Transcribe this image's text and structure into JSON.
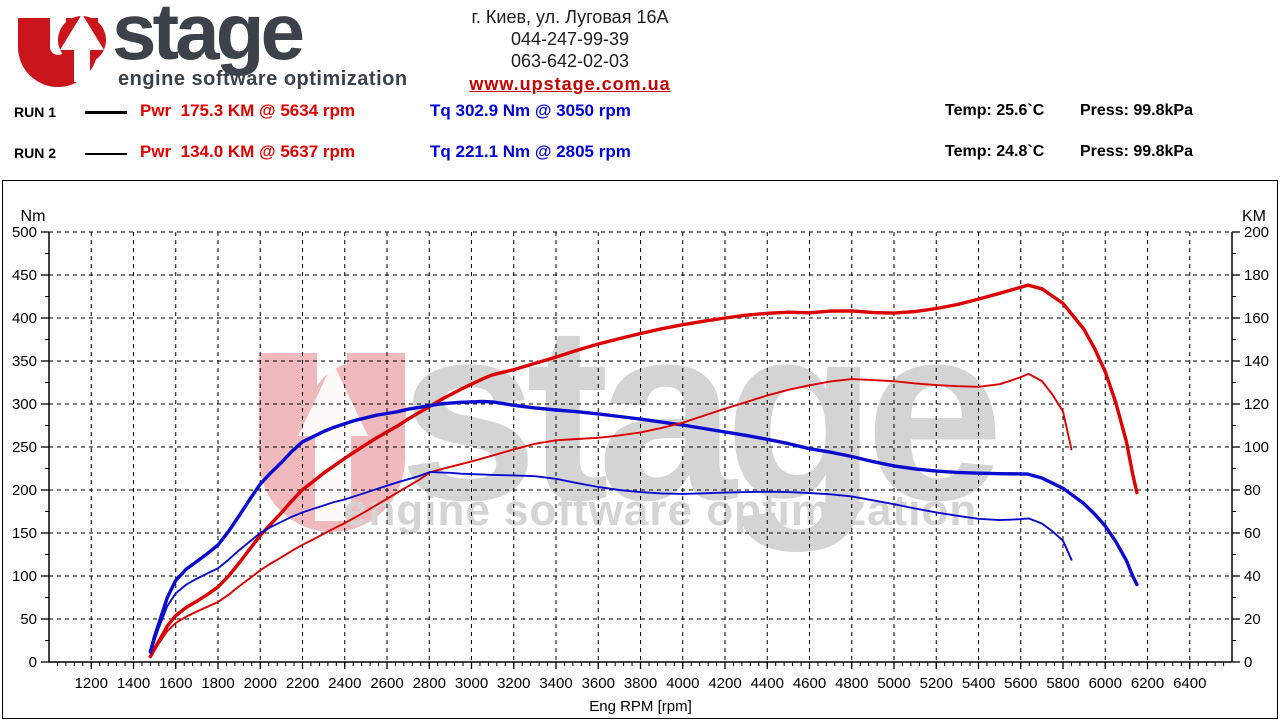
{
  "header": {
    "logo": {
      "stage": "stage",
      "tagline": "engine software optimization"
    },
    "contact": {
      "address": "г. Киев, ул. Луговая 16А",
      "phone1": "044-247-99-39",
      "phone2": "063-642-02-03",
      "website": "www.upstage.com.ua"
    }
  },
  "runs": [
    {
      "label": "RUN 1",
      "pwr": "Pwr  175.3 KM @ 5634 rpm",
      "tq": "Tq 302.9 Nm @ 3050 rpm",
      "temp": "Temp: 25.6`C",
      "press": "Press: 99.8kPa"
    },
    {
      "label": "RUN 2",
      "pwr": "Pwr  134.0 KM @ 5637 rpm",
      "tq": "Tq 221.1 Nm @ 2805 rpm",
      "temp": "Temp: 24.8`C",
      "press": "Press: 99.8kPa"
    }
  ],
  "colors": {
    "power_curve": "#dc0000",
    "torque_curve": "#0b0bd0",
    "grid": "#000000",
    "watermark_red": "#efb9bd",
    "watermark_gray": "#d4d4d4",
    "logo_red": "#c9151b",
    "logo_dark": "#3b4249"
  },
  "watermark": {
    "stage": "stage",
    "tagline": "engine software optimization"
  },
  "chart_data": {
    "type": "line",
    "xlabel": "Eng RPM [rpm]",
    "x_axis": {
      "min": 1000,
      "max": 6600,
      "tick_step": 200,
      "minor_step": 40,
      "first_label": 1200,
      "last_label": 6400
    },
    "left_axis": {
      "label": "Nm",
      "min": 0,
      "max": 500,
      "tick_step": 50,
      "minor_step": 25
    },
    "right_axis": {
      "label": "KM",
      "min": 0,
      "max": 200,
      "tick_step": 20,
      "minor_step": 10
    },
    "grid": "dashed",
    "series": [
      {
        "name": "RUN 1 Power",
        "unit": "KM",
        "axis": "right",
        "color_key": "power_curve",
        "thick": true,
        "peak": "175.3 KM @ 5634 rpm",
        "points": [
          [
            1480,
            2.5
          ],
          [
            1500,
            6.4
          ],
          [
            1520,
            9.7
          ],
          [
            1560,
            16.7
          ],
          [
            1600,
            21.6
          ],
          [
            1650,
            25.4
          ],
          [
            1700,
            28.3
          ],
          [
            1750,
            31.4
          ],
          [
            1800,
            34.9
          ],
          [
            1850,
            40.0
          ],
          [
            1900,
            46.0
          ],
          [
            1950,
            52.5
          ],
          [
            2000,
            58.9
          ],
          [
            2050,
            64.2
          ],
          [
            2100,
            69.4
          ],
          [
            2150,
            75.0
          ],
          [
            2200,
            80.2
          ],
          [
            2250,
            83.9
          ],
          [
            2300,
            87.8
          ],
          [
            2350,
            91.3
          ],
          [
            2400,
            94.7
          ],
          [
            2450,
            98.0
          ],
          [
            2500,
            101.1
          ],
          [
            2550,
            104.2
          ],
          [
            2600,
            107.0
          ],
          [
            2650,
            109.8
          ],
          [
            2700,
            113.0
          ],
          [
            2750,
            115.9
          ],
          [
            2800,
            118.8
          ],
          [
            2850,
            121.7
          ],
          [
            2900,
            124.3
          ],
          [
            2950,
            126.9
          ],
          [
            3000,
            129.2
          ],
          [
            3050,
            131.6
          ],
          [
            3100,
            133.6
          ],
          [
            3150,
            134.8
          ],
          [
            3200,
            136.0
          ],
          [
            3300,
            138.9
          ],
          [
            3400,
            141.8
          ],
          [
            3500,
            145.0
          ],
          [
            3600,
            147.9
          ],
          [
            3700,
            150.4
          ],
          [
            3800,
            152.8
          ],
          [
            3900,
            155.0
          ],
          [
            4000,
            156.9
          ],
          [
            4100,
            158.5
          ],
          [
            4200,
            160.0
          ],
          [
            4300,
            161.3
          ],
          [
            4400,
            162.2
          ],
          [
            4500,
            162.7
          ],
          [
            4600,
            162.4
          ],
          [
            4700,
            163.2
          ],
          [
            4800,
            163.3
          ],
          [
            4900,
            162.5
          ],
          [
            5000,
            162.3
          ],
          [
            5100,
            163.0
          ],
          [
            5200,
            164.4
          ],
          [
            5300,
            166.3
          ],
          [
            5400,
            168.8
          ],
          [
            5500,
            171.5
          ],
          [
            5600,
            174.3
          ],
          [
            5634,
            175.3
          ],
          [
            5700,
            173.6
          ],
          [
            5800,
            166.8
          ],
          [
            5850,
            160.7
          ],
          [
            5900,
            154.6
          ],
          [
            5950,
            145.7
          ],
          [
            6000,
            135.0
          ],
          [
            6050,
            120.6
          ],
          [
            6100,
            102.5
          ],
          [
            6130,
            87.3
          ],
          [
            6150,
            78.8
          ]
        ]
      },
      {
        "name": "RUN 1 Torque",
        "unit": "Nm",
        "axis": "left",
        "color_key": "torque_curve",
        "thick": true,
        "peak": "302.9 Nm @ 3050 rpm",
        "points": [
          [
            1480,
            12
          ],
          [
            1500,
            30
          ],
          [
            1520,
            45
          ],
          [
            1560,
            75
          ],
          [
            1600,
            95
          ],
          [
            1650,
            108
          ],
          [
            1700,
            117
          ],
          [
            1750,
            126
          ],
          [
            1800,
            136
          ],
          [
            1850,
            152
          ],
          [
            1900,
            170
          ],
          [
            1950,
            189
          ],
          [
            2000,
            207
          ],
          [
            2050,
            220
          ],
          [
            2100,
            232
          ],
          [
            2150,
            245
          ],
          [
            2200,
            256
          ],
          [
            2250,
            262
          ],
          [
            2300,
            268
          ],
          [
            2350,
            273
          ],
          [
            2400,
            277
          ],
          [
            2450,
            281
          ],
          [
            2500,
            284
          ],
          [
            2550,
            287
          ],
          [
            2600,
            289
          ],
          [
            2650,
            291
          ],
          [
            2700,
            294
          ],
          [
            2750,
            296
          ],
          [
            2800,
            298
          ],
          [
            2850,
            300
          ],
          [
            2900,
            301
          ],
          [
            2950,
            302
          ],
          [
            3000,
            302.5
          ],
          [
            3050,
            302.9
          ],
          [
            3100,
            302.5
          ],
          [
            3150,
            300.5
          ],
          [
            3200,
            298.5
          ],
          [
            3300,
            295.5
          ],
          [
            3400,
            293
          ],
          [
            3500,
            291
          ],
          [
            3600,
            288.5
          ],
          [
            3700,
            285.5
          ],
          [
            3800,
            282.5
          ],
          [
            3900,
            279
          ],
          [
            4000,
            275.5
          ],
          [
            4100,
            271.5
          ],
          [
            4200,
            267.5
          ],
          [
            4300,
            263.5
          ],
          [
            4400,
            259
          ],
          [
            4500,
            254
          ],
          [
            4600,
            248
          ],
          [
            4700,
            244
          ],
          [
            4800,
            239
          ],
          [
            4900,
            233
          ],
          [
            5000,
            228
          ],
          [
            5100,
            224.5
          ],
          [
            5200,
            222
          ],
          [
            5300,
            220.5
          ],
          [
            5400,
            219.5
          ],
          [
            5500,
            219
          ],
          [
            5600,
            218.7
          ],
          [
            5634,
            218.5
          ],
          [
            5700,
            214
          ],
          [
            5800,
            202
          ],
          [
            5850,
            193
          ],
          [
            5900,
            184
          ],
          [
            5950,
            172
          ],
          [
            6000,
            158
          ],
          [
            6050,
            140
          ],
          [
            6100,
            118
          ],
          [
            6130,
            100
          ],
          [
            6150,
            90
          ]
        ]
      },
      {
        "name": "RUN 2 Power",
        "unit": "KM",
        "axis": "right",
        "color_key": "power_curve",
        "thick": false,
        "peak": "134.0 KM @ 5637 rpm",
        "points": [
          [
            1480,
            2.1
          ],
          [
            1500,
            5.3
          ],
          [
            1520,
            8.7
          ],
          [
            1560,
            14.4
          ],
          [
            1600,
            18.2
          ],
          [
            1650,
            21.1
          ],
          [
            1700,
            23.5
          ],
          [
            1750,
            25.7
          ],
          [
            1800,
            27.9
          ],
          [
            1850,
            31.3
          ],
          [
            1900,
            35.2
          ],
          [
            1950,
            38.9
          ],
          [
            2000,
            42.7
          ],
          [
            2050,
            45.8
          ],
          [
            2100,
            48.7
          ],
          [
            2150,
            51.7
          ],
          [
            2200,
            54.5
          ],
          [
            2250,
            57.0
          ],
          [
            2300,
            59.6
          ],
          [
            2350,
            62.2
          ],
          [
            2400,
            64.6
          ],
          [
            2450,
            67.3
          ],
          [
            2500,
            70.1
          ],
          [
            2550,
            73.0
          ],
          [
            2600,
            75.9
          ],
          [
            2650,
            78.9
          ],
          [
            2700,
            81.7
          ],
          [
            2750,
            84.6
          ],
          [
            2805,
            88.3
          ],
          [
            2850,
            89.5
          ],
          [
            2900,
            90.8
          ],
          [
            2950,
            92.0
          ],
          [
            3000,
            93.3
          ],
          [
            3100,
            96.0
          ],
          [
            3200,
            98.9
          ],
          [
            3300,
            101.5
          ],
          [
            3400,
            103.1
          ],
          [
            3500,
            103.7
          ],
          [
            3600,
            104.3
          ],
          [
            3700,
            105.4
          ],
          [
            3800,
            106.8
          ],
          [
            3900,
            108.9
          ],
          [
            4000,
            111.3
          ],
          [
            4100,
            114.6
          ],
          [
            4200,
            117.8
          ],
          [
            4300,
            120.9
          ],
          [
            4400,
            124.0
          ],
          [
            4500,
            126.6
          ],
          [
            4600,
            128.7
          ],
          [
            4700,
            130.5
          ],
          [
            4800,
            131.6
          ],
          [
            4900,
            131.1
          ],
          [
            5000,
            130.6
          ],
          [
            5100,
            129.6
          ],
          [
            5200,
            128.8
          ],
          [
            5300,
            128.3
          ],
          [
            5400,
            128.0
          ],
          [
            5500,
            129.2
          ],
          [
            5550,
            130.8
          ],
          [
            5600,
            132.5
          ],
          [
            5637,
            134.0
          ],
          [
            5700,
            130.7
          ],
          [
            5750,
            124.4
          ],
          [
            5800,
            116.5
          ],
          [
            5840,
            98.9
          ]
        ]
      },
      {
        "name": "RUN 2 Torque",
        "unit": "Nm",
        "axis": "left",
        "color_key": "torque_curve",
        "thick": false,
        "peak": "221.1 Nm @ 2805 rpm",
        "points": [
          [
            1480,
            10
          ],
          [
            1500,
            25
          ],
          [
            1520,
            40
          ],
          [
            1560,
            65
          ],
          [
            1600,
            80
          ],
          [
            1650,
            90
          ],
          [
            1700,
            97
          ],
          [
            1750,
            103
          ],
          [
            1800,
            109
          ],
          [
            1850,
            119
          ],
          [
            1900,
            130
          ],
          [
            1950,
            140
          ],
          [
            2000,
            150
          ],
          [
            2050,
            157
          ],
          [
            2100,
            163
          ],
          [
            2150,
            169
          ],
          [
            2200,
            174
          ],
          [
            2250,
            178
          ],
          [
            2300,
            182
          ],
          [
            2350,
            186
          ],
          [
            2400,
            189
          ],
          [
            2450,
            193
          ],
          [
            2500,
            197
          ],
          [
            2550,
            201
          ],
          [
            2600,
            205
          ],
          [
            2650,
            209
          ],
          [
            2700,
            212.5
          ],
          [
            2750,
            216
          ],
          [
            2805,
            221.1
          ],
          [
            2850,
            220.5
          ],
          [
            2900,
            220
          ],
          [
            2950,
            219
          ],
          [
            3000,
            218.5
          ],
          [
            3100,
            217.5
          ],
          [
            3200,
            217
          ],
          [
            3300,
            216
          ],
          [
            3400,
            213
          ],
          [
            3500,
            208
          ],
          [
            3600,
            203.5
          ],
          [
            3700,
            200
          ],
          [
            3800,
            197.5
          ],
          [
            3900,
            196
          ],
          [
            4000,
            195.5
          ],
          [
            4100,
            196.2
          ],
          [
            4200,
            197
          ],
          [
            4300,
            197.5
          ],
          [
            4400,
            198
          ],
          [
            4500,
            197.5
          ],
          [
            4600,
            196.5
          ],
          [
            4700,
            195
          ],
          [
            4800,
            192.5
          ],
          [
            4900,
            188
          ],
          [
            5000,
            183.5
          ],
          [
            5100,
            178.5
          ],
          [
            5200,
            174
          ],
          [
            5300,
            170
          ],
          [
            5400,
            166.5
          ],
          [
            5500,
            165
          ],
          [
            5550,
            165.5
          ],
          [
            5600,
            166.2
          ],
          [
            5637,
            167
          ],
          [
            5700,
            161
          ],
          [
            5750,
            152
          ],
          [
            5800,
            141
          ],
          [
            5840,
            119
          ]
        ]
      }
    ]
  }
}
